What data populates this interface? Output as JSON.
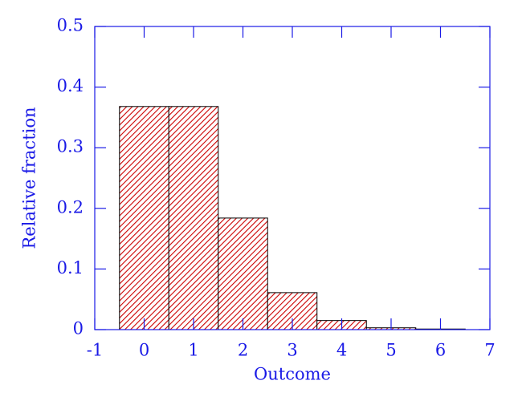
{
  "chart_data": {
    "type": "histogram",
    "xlabel": "Outcome",
    "ylabel": "Relative fraction",
    "bins": [
      -0.5,
      0.5,
      1.5,
      2.5,
      3.5,
      4.5,
      5.5,
      6.5
    ],
    "values": [
      0.368,
      0.368,
      0.184,
      0.061,
      0.015,
      0.003,
      0.001
    ],
    "color": "#cc0000",
    "xlim": [
      -1,
      7
    ],
    "xticks": [
      -1,
      0,
      1,
      2,
      3,
      4,
      5,
      6,
      7
    ],
    "ylim": [
      0,
      0.5
    ],
    "yticks": [
      0,
      0.1,
      0.2,
      0.3,
      0.4,
      0.5
    ]
  }
}
